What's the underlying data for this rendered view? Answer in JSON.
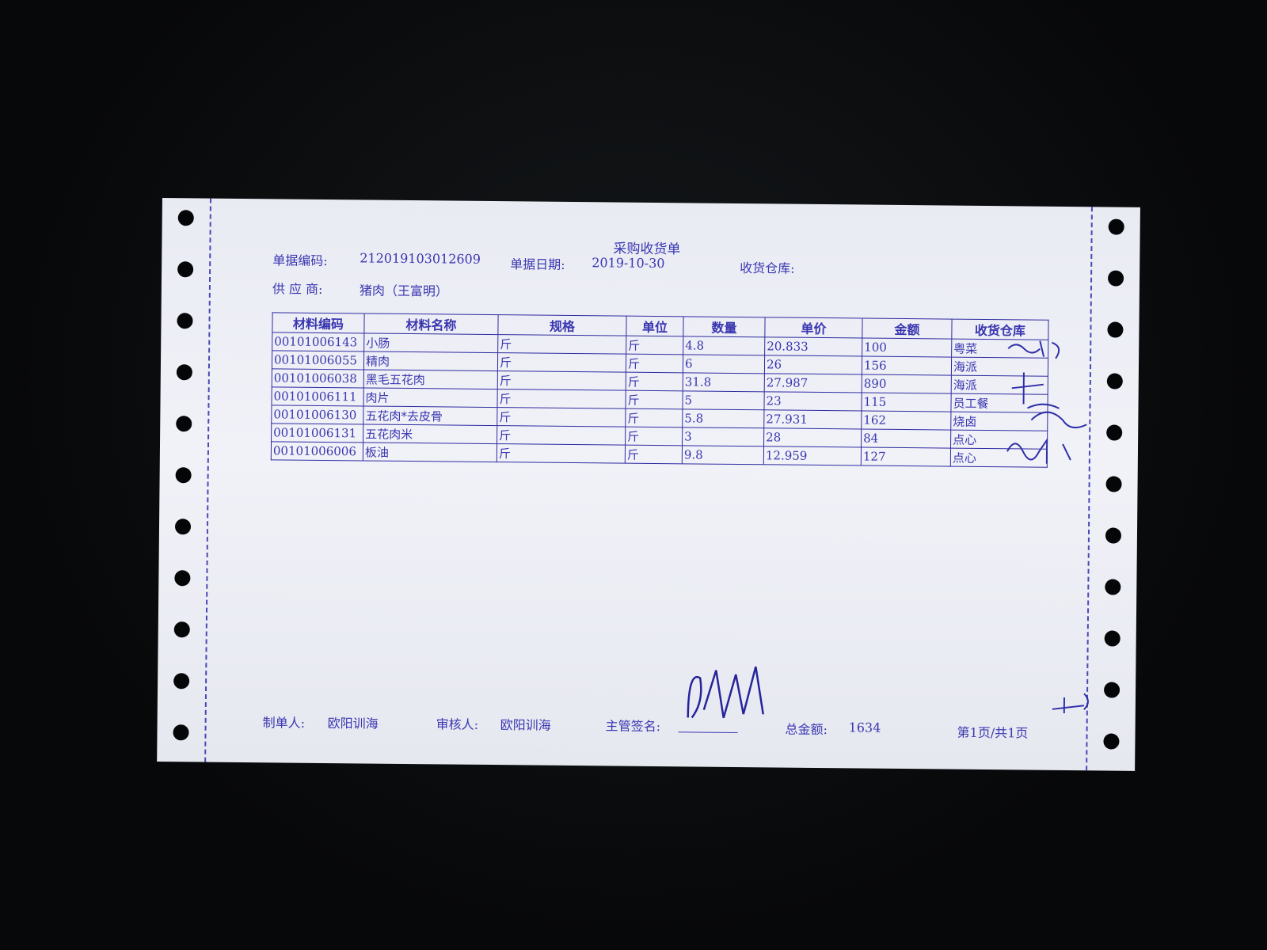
{
  "document": {
    "title": "采购收货单",
    "doc_no_label": "单据编码:",
    "doc_no": "212019103012609",
    "date_label": "单据日期:",
    "date": "2019-10-30",
    "warehouse_label": "收货仓库:",
    "supplier_label": "供 应 商:",
    "supplier": "猪肉（王富明）"
  },
  "table": {
    "headers": [
      "材料编码",
      "材料名称",
      "规格",
      "单位",
      "数量",
      "单价",
      "金额",
      "收货仓库"
    ],
    "rows": [
      [
        "00101006143",
        "小肠",
        "斤",
        "斤",
        "4.8",
        "20.833",
        "100",
        "粤菜"
      ],
      [
        "00101006055",
        "精肉",
        "斤",
        "斤",
        "6",
        "26",
        "156",
        "海派"
      ],
      [
        "00101006038",
        "黑毛五花肉",
        "斤",
        "斤",
        "31.8",
        "27.987",
        "890",
        "海派"
      ],
      [
        "00101006111",
        "肉片",
        "斤",
        "斤",
        "5",
        "23",
        "115",
        "员工餐"
      ],
      [
        "00101006130",
        "五花肉*去皮骨",
        "斤",
        "斤",
        "5.8",
        "27.931",
        "162",
        "烧卤"
      ],
      [
        "00101006131",
        "五花肉米",
        "斤",
        "斤",
        "3",
        "28",
        "84",
        "点心"
      ],
      [
        "00101006006",
        "板油",
        "斤",
        "斤",
        "9.8",
        "12.959",
        "127",
        "点心"
      ]
    ]
  },
  "footer": {
    "maker_label": "制单人:",
    "maker": "欧阳训海",
    "reviewer_label": "审核人:",
    "reviewer": "欧阳训海",
    "supervisor_label": "主管签名:",
    "total_label": "总金额:",
    "total": "1634",
    "page": "第1页/共1页"
  },
  "handwriting": {
    "signatures": [
      "郑思华",
      "李志强",
      "江刚杜",
      "上杰"
    ]
  },
  "colors": {
    "ink": "#3a36b0",
    "paper": "#eceef5",
    "background": "#060708"
  }
}
